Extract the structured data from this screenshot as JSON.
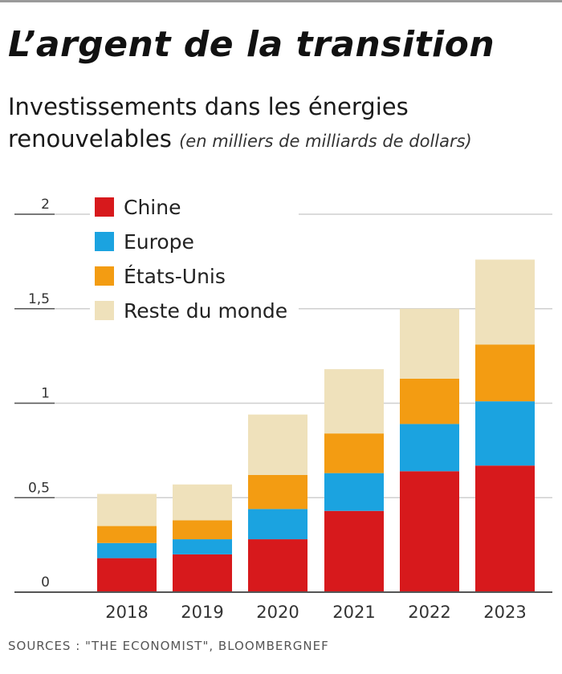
{
  "header": {
    "title": "L’argent de la transition",
    "subtitle": "Investissements dans les énergies renouvelables",
    "unit": "(en milliers de milliards de dollars)"
  },
  "footer": {
    "source": "SOURCES : \"THE ECONOMIST\", BLOOMBERGNEF"
  },
  "chart_data": {
    "type": "bar",
    "stacked": true,
    "categories": [
      "2018",
      "2019",
      "2020",
      "2021",
      "2022",
      "2023"
    ],
    "series": [
      {
        "name": "Chine",
        "color": "#d7191c",
        "values": [
          0.18,
          0.2,
          0.28,
          0.43,
          0.64,
          0.67
        ]
      },
      {
        "name": "Europe",
        "color": "#1ba3e0",
        "values": [
          0.08,
          0.08,
          0.16,
          0.2,
          0.25,
          0.34
        ]
      },
      {
        "name": "États-Unis",
        "color": "#f39c12",
        "values": [
          0.09,
          0.1,
          0.18,
          0.21,
          0.24,
          0.3
        ]
      },
      {
        "name": "Reste du monde",
        "color": "#efe1bb",
        "values": [
          0.17,
          0.19,
          0.32,
          0.34,
          0.37,
          0.45
        ]
      }
    ],
    "y_ticks": [
      "0",
      "0,5",
      "1",
      "1,5",
      "2"
    ],
    "ylim": [
      0,
      2
    ],
    "grid": true,
    "legend_position": "top-left"
  }
}
